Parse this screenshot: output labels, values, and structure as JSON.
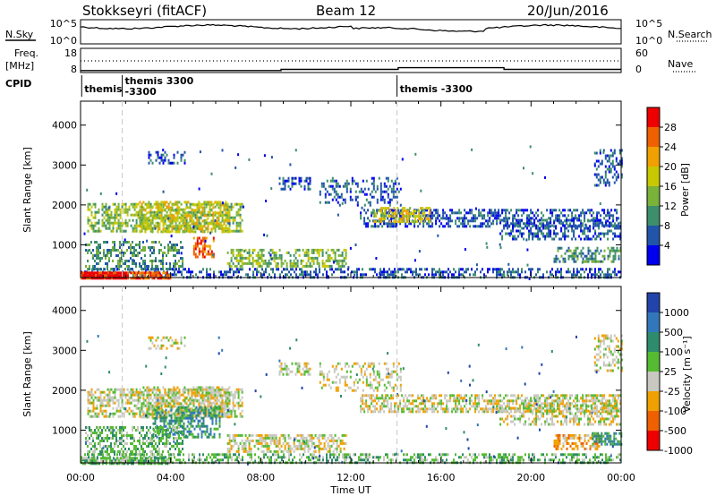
{
  "header": {
    "title": "Stokkseyri (fitACF)",
    "beam": "Beam 12",
    "date": "20/Jun/2016"
  },
  "noise_panel": {
    "left_label": "N.Sky",
    "right_label": "N.Search",
    "left_ticks": [
      "10^5",
      "10^0"
    ],
    "right_ticks": [
      "10^5",
      "10^0"
    ]
  },
  "freq_panel": {
    "left_label_top": "Freq.",
    "left_label_unit": "[MHz]",
    "right_label": "Nave",
    "left_ticks": [
      "18",
      "8"
    ],
    "right_ticks": [
      "60",
      "0"
    ],
    "freq_steps": [
      {
        "start": 0.0,
        "end": 8.9,
        "value": 8.8
      },
      {
        "start": 8.9,
        "end": 14.1,
        "value": 9.3
      },
      {
        "start": 14.1,
        "end": 18.8,
        "value": 10.0
      },
      {
        "start": 18.8,
        "end": 24.0,
        "value": 9.3
      }
    ]
  },
  "cpid_panel": {
    "label": "CPID",
    "entries": [
      {
        "time": 0.05,
        "line1": "themis",
        "line2": ""
      },
      {
        "time": 1.85,
        "line1": "themis 3300",
        "line2": "-3300"
      },
      {
        "time": 14.05,
        "line1": "themis -3300",
        "line2": ""
      }
    ]
  },
  "chart_data": [
    {
      "type": "heatmap",
      "name": "Power",
      "ylabel": "Slant Range [km]",
      "yticks": [
        "1000",
        "2000",
        "3000",
        "4000"
      ],
      "ylim": [
        180,
        4600
      ],
      "xlim": [
        0,
        24
      ],
      "colorbar_label": "Power [dB]",
      "colorbar_ticks": [
        "4",
        "8",
        "12",
        "16",
        "20",
        "24",
        "28"
      ],
      "colors": [
        "#0000ee",
        "#2255aa",
        "#3d8f6b",
        "#7ab23a",
        "#c8c800",
        "#f0a000",
        "#ee6000",
        "#ee0000"
      ],
      "blobs": [
        {
          "t0": 0.3,
          "t1": 7.2,
          "r0": 1350,
          "r1": 2050,
          "level": 3,
          "density": 0.55
        },
        {
          "t0": 2.6,
          "t1": 6.6,
          "r0": 1300,
          "r1": 2100,
          "level": 4,
          "density": 0.5
        },
        {
          "t0": 5.0,
          "t1": 5.9,
          "r0": 700,
          "r1": 1200,
          "level": 6,
          "density": 0.6
        },
        {
          "t0": 0.2,
          "t1": 4.5,
          "r0": 400,
          "r1": 1100,
          "level": 2,
          "density": 0.45
        },
        {
          "t0": 6.5,
          "t1": 11.8,
          "r0": 450,
          "r1": 900,
          "level": 3,
          "density": 0.5
        },
        {
          "t0": 0.0,
          "t1": 24.0,
          "r0": 180,
          "r1": 420,
          "level": 1,
          "density": 0.45
        },
        {
          "t0": 0.0,
          "t1": 2.1,
          "r0": 180,
          "r1": 330,
          "level": 7,
          "density": 1.0
        },
        {
          "t0": 2.2,
          "t1": 4.0,
          "r0": 180,
          "r1": 330,
          "level": 6,
          "density": 0.8
        },
        {
          "t0": 12.4,
          "t1": 24.0,
          "r0": 1450,
          "r1": 1900,
          "level": 1,
          "density": 0.5
        },
        {
          "t0": 13.0,
          "t1": 15.5,
          "r0": 1600,
          "r1": 1950,
          "level": 4,
          "density": 0.55
        },
        {
          "t0": 18.6,
          "t1": 24.0,
          "r0": 1150,
          "r1": 1650,
          "level": 1,
          "density": 0.45
        },
        {
          "t0": 21.0,
          "t1": 24.0,
          "r0": 550,
          "r1": 950,
          "level": 2,
          "density": 0.5
        },
        {
          "t0": 8.8,
          "t1": 10.2,
          "r0": 2400,
          "r1": 2700,
          "level": 1,
          "density": 0.5
        },
        {
          "t0": 10.6,
          "t1": 14.2,
          "r0": 2000,
          "r1": 2700,
          "level": 1,
          "density": 0.3
        },
        {
          "t0": 3.0,
          "t1": 4.6,
          "r0": 3050,
          "r1": 3350,
          "level": 1,
          "density": 0.35
        },
        {
          "t0": 22.8,
          "t1": 24.0,
          "r0": 2500,
          "r1": 3400,
          "level": 1,
          "density": 0.4
        }
      ]
    },
    {
      "type": "heatmap",
      "name": "Velocity",
      "ylabel": "Slant Range [km]",
      "yticks": [
        "1000",
        "2000",
        "3000",
        "4000"
      ],
      "ylim": [
        180,
        4600
      ],
      "xlim": [
        0,
        24
      ],
      "xticks": [
        "00:00",
        "04:00",
        "08:00",
        "12:00",
        "16:00",
        "20:00",
        "00:00"
      ],
      "xlabel": "Time UT",
      "colorbar_label": "Velocity [m s⁻¹]",
      "colorbar_ticks": [
        "1000",
        "500",
        "100",
        "25",
        "-25",
        "-100",
        "-500",
        "-1000"
      ],
      "colors": [
        "#2244aa",
        "#3377bb",
        "#2e8b6b",
        "#55bb33",
        "#c8c8c0",
        "#f0a000",
        "#ee6000",
        "#ee0000"
      ],
      "blobs": [
        {
          "t0": 0.3,
          "t1": 7.2,
          "r0": 1350,
          "r1": 2050,
          "level": 4,
          "density": 0.55
        },
        {
          "t0": 2.6,
          "t1": 6.6,
          "r0": 1300,
          "r1": 2100,
          "level": 4,
          "density": 0.5
        },
        {
          "t0": 3.2,
          "t1": 6.2,
          "r0": 800,
          "r1": 1600,
          "level": 2,
          "density": 0.55
        },
        {
          "t0": 0.2,
          "t1": 4.5,
          "r0": 400,
          "r1": 1100,
          "level": 3,
          "density": 0.5
        },
        {
          "t0": 6.5,
          "t1": 11.8,
          "r0": 450,
          "r1": 900,
          "level": 4,
          "density": 0.55
        },
        {
          "t0": 0.0,
          "t1": 24.0,
          "r0": 180,
          "r1": 420,
          "level": 3,
          "density": 0.45
        },
        {
          "t0": 0.0,
          "t1": 4.0,
          "r0": 180,
          "r1": 330,
          "level": 3,
          "density": 0.8
        },
        {
          "t0": 12.4,
          "t1": 24.0,
          "r0": 1450,
          "r1": 1900,
          "level": 4,
          "density": 0.6
        },
        {
          "t0": 18.6,
          "t1": 24.0,
          "r0": 1150,
          "r1": 1650,
          "level": 4,
          "density": 0.5
        },
        {
          "t0": 21.0,
          "t1": 23.0,
          "r0": 550,
          "r1": 900,
          "level": 5,
          "density": 0.55
        },
        {
          "t0": 22.7,
          "t1": 24.0,
          "r0": 650,
          "r1": 950,
          "level": 2,
          "density": 0.55
        },
        {
          "t0": 8.8,
          "t1": 10.2,
          "r0": 2400,
          "r1": 2700,
          "level": 4,
          "density": 0.5
        },
        {
          "t0": 10.6,
          "t1": 14.2,
          "r0": 2000,
          "r1": 2700,
          "level": 4,
          "density": 0.3
        },
        {
          "t0": 3.0,
          "t1": 4.6,
          "r0": 3050,
          "r1": 3350,
          "level": 4,
          "density": 0.35
        },
        {
          "t0": 22.8,
          "t1": 24.0,
          "r0": 2500,
          "r1": 3400,
          "level": 4,
          "density": 0.4
        }
      ]
    }
  ]
}
